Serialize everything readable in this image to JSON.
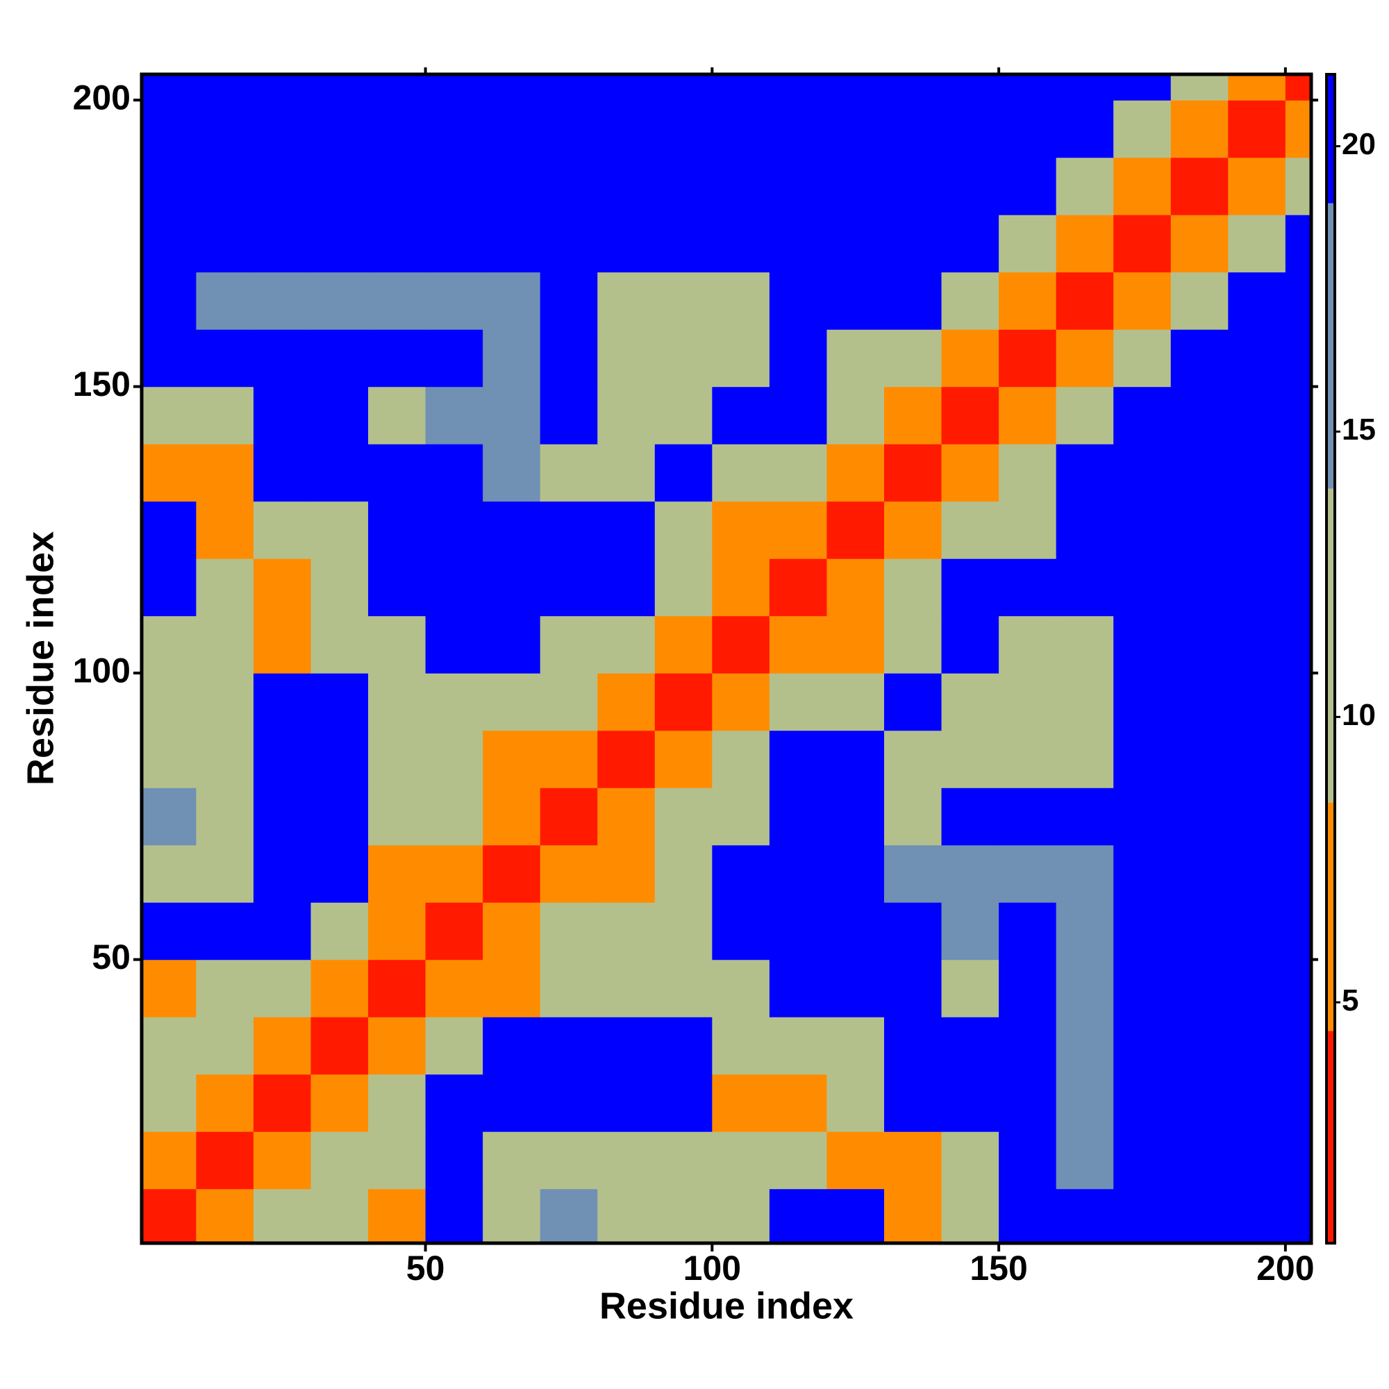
{
  "chart_data": {
    "type": "heatmap",
    "xlabel": "Residue index",
    "ylabel": "Residue index",
    "x": [
      5,
      15,
      25,
      35,
      45,
      55,
      65,
      75,
      85,
      95,
      105,
      115,
      125,
      135,
      145,
      155,
      165,
      175,
      185,
      195,
      205
    ],
    "y": [
      5,
      15,
      25,
      35,
      45,
      55,
      65,
      75,
      85,
      95,
      105,
      115,
      125,
      135,
      145,
      155,
      165,
      175,
      185,
      195,
      205
    ],
    "values": [
      [
        3,
        8,
        14,
        12,
        7,
        21,
        12,
        16,
        13,
        12,
        11,
        21,
        21,
        8,
        11,
        21,
        21,
        21,
        21,
        21,
        21
      ],
      [
        8,
        3,
        8,
        9,
        11,
        21,
        13,
        14,
        13,
        12,
        10,
        11,
        8,
        8,
        13,
        21,
        16,
        21,
        21,
        21,
        21
      ],
      [
        14,
        8,
        3,
        8,
        14,
        21,
        21,
        21,
        21,
        21,
        8,
        8,
        11,
        21,
        21,
        21,
        17,
        21,
        21,
        21,
        21
      ],
      [
        12,
        9,
        8,
        3,
        8,
        14,
        21,
        21,
        21,
        21,
        12,
        11,
        13,
        21,
        21,
        21,
        17,
        21,
        21,
        21,
        21
      ],
      [
        7,
        11,
        14,
        8,
        3,
        8,
        7,
        12,
        13,
        13,
        14,
        21,
        21,
        21,
        14,
        21,
        16,
        21,
        21,
        21,
        21
      ],
      [
        21,
        21,
        21,
        14,
        8,
        3,
        8,
        10,
        12,
        12,
        21,
        21,
        21,
        21,
        15,
        21,
        16,
        21,
        21,
        21,
        21
      ],
      [
        12,
        13,
        21,
        21,
        7,
        8,
        3,
        8,
        8,
        13,
        21,
        21,
        21,
        15,
        15,
        15,
        16,
        21,
        21,
        21,
        21
      ],
      [
        16,
        14,
        21,
        21,
        12,
        10,
        8,
        3,
        8,
        12,
        12,
        21,
        21,
        14,
        21,
        21,
        21,
        21,
        21,
        21,
        21
      ],
      [
        13,
        13,
        21,
        21,
        13,
        12,
        8,
        8,
        3,
        8,
        10,
        21,
        21,
        14,
        12,
        13,
        13,
        21,
        21,
        21,
        21
      ],
      [
        12,
        12,
        21,
        21,
        13,
        12,
        13,
        12,
        8,
        3,
        8,
        9,
        13,
        21,
        13,
        12,
        13,
        21,
        21,
        21,
        21
      ],
      [
        11,
        10,
        8,
        12,
        14,
        21,
        21,
        12,
        10,
        8,
        3,
        8,
        7,
        13,
        21,
        12,
        13,
        21,
        21,
        21,
        21
      ],
      [
        21,
        11,
        8,
        11,
        21,
        21,
        21,
        21,
        21,
        9,
        8,
        3,
        8,
        13,
        21,
        21,
        21,
        21,
        21,
        21,
        21
      ],
      [
        21,
        8,
        11,
        13,
        21,
        21,
        21,
        21,
        21,
        13,
        7,
        8,
        3,
        8,
        9,
        12,
        21,
        21,
        21,
        21,
        21
      ],
      [
        8,
        8,
        21,
        21,
        21,
        21,
        15,
        14,
        14,
        21,
        13,
        13,
        8,
        3,
        8,
        10,
        21,
        21,
        21,
        21,
        21
      ],
      [
        11,
        13,
        21,
        21,
        14,
        15,
        15,
        21,
        12,
        13,
        21,
        21,
        9,
        8,
        3,
        8,
        14,
        21,
        21,
        21,
        21
      ],
      [
        21,
        21,
        21,
        21,
        21,
        21,
        15,
        21,
        13,
        12,
        12,
        21,
        12,
        10,
        8,
        3,
        8,
        9,
        21,
        21,
        21
      ],
      [
        21,
        16,
        17,
        17,
        16,
        16,
        16,
        21,
        13,
        13,
        13,
        21,
        21,
        21,
        14,
        8,
        3,
        8,
        11,
        21,
        21
      ],
      [
        21,
        21,
        21,
        21,
        21,
        21,
        21,
        21,
        21,
        21,
        21,
        21,
        21,
        21,
        21,
        9,
        8,
        3,
        8,
        11,
        21
      ],
      [
        21,
        21,
        21,
        21,
        21,
        21,
        21,
        21,
        21,
        21,
        21,
        21,
        21,
        21,
        21,
        21,
        11,
        8,
        3,
        8,
        11
      ],
      [
        21,
        21,
        21,
        21,
        21,
        21,
        21,
        21,
        21,
        21,
        21,
        21,
        21,
        21,
        21,
        21,
        21,
        11,
        8,
        3,
        8
      ],
      [
        21,
        21,
        21,
        21,
        21,
        21,
        21,
        21,
        21,
        21,
        21,
        21,
        21,
        21,
        21,
        21,
        21,
        21,
        11,
        8,
        3
      ]
    ],
    "xlim": [
      0.5,
      204.5
    ],
    "ylim": [
      0.5,
      204.5
    ],
    "xticks": [
      50,
      100,
      150,
      200
    ],
    "yticks": [
      50,
      100,
      150,
      200
    ],
    "zlim": [
      0.78,
      21.26
    ],
    "zticks": [
      5,
      10,
      15,
      20
    ],
    "color_steps": [
      {
        "max": 4.5,
        "color": "#ff1a00"
      },
      {
        "max": 8.5,
        "color": "#ff8c00"
      },
      {
        "max": 14,
        "color": "#b4c08c"
      },
      {
        "max": 19,
        "color": "#7090b4"
      },
      {
        "color": "#0000ff"
      }
    ]
  }
}
